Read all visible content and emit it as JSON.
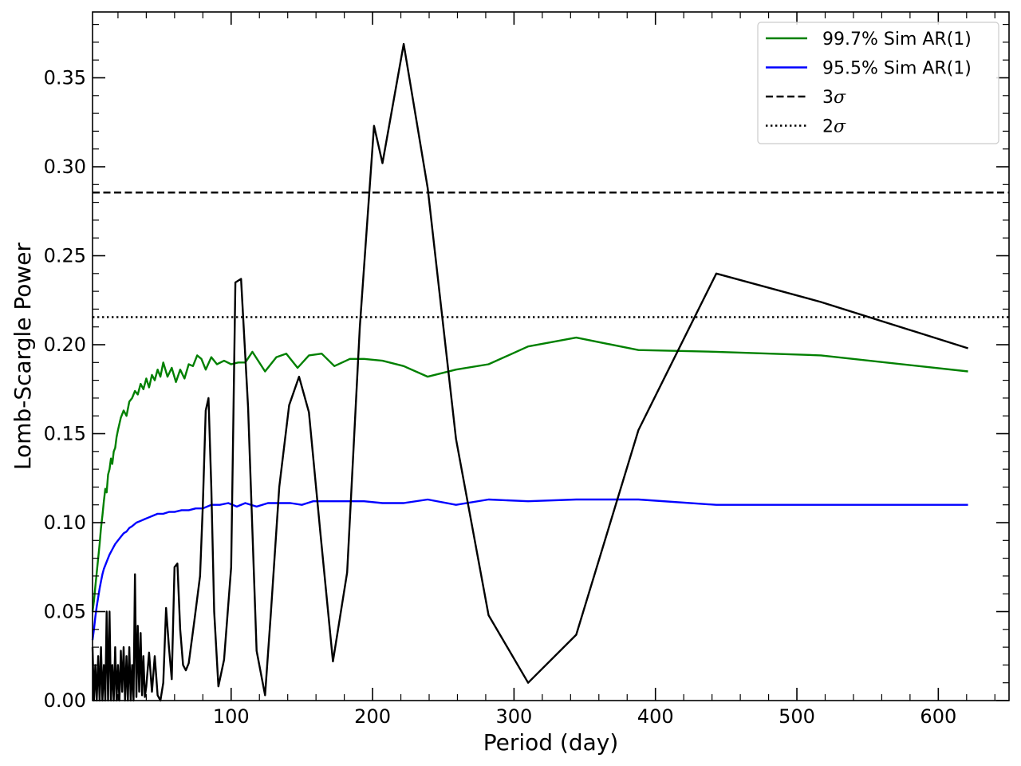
{
  "chart_data": {
    "type": "line",
    "title": "",
    "xlabel": "Period (day)",
    "ylabel": "Lomb-Scargle Power",
    "xlim": [
      2,
      650
    ],
    "ylim": [
      0.0,
      0.387
    ],
    "xticks": [
      100,
      200,
      300,
      400,
      500,
      600
    ],
    "xtick_labels": [
      "100",
      "200",
      "300",
      "400",
      "500",
      "600"
    ],
    "yticks": [
      0.0,
      0.05,
      0.1,
      0.15,
      0.2,
      0.25,
      0.3,
      0.35
    ],
    "ytick_labels": [
      "0.00",
      "0.05",
      "0.10",
      "0.15",
      "0.20",
      "0.25",
      "0.30",
      "0.35"
    ],
    "grid": false,
    "legend_position": "top-right",
    "legend": [
      {
        "label": "99.7% Sim AR(1)",
        "color": "#008000",
        "style": "solid"
      },
      {
        "label": "95.5% Sim AR(1)",
        "color": "#0000ff",
        "style": "solid"
      },
      {
        "label": "3σ",
        "label_main": "3",
        "label_symbol": "σ",
        "color": "#000000",
        "style": "dashed"
      },
      {
        "label": "2σ",
        "label_main": "2",
        "label_symbol": "σ",
        "color": "#000000",
        "style": "dotted"
      }
    ],
    "hlines": [
      {
        "name": "3σ",
        "y": 0.2855,
        "color": "#000000",
        "style": "dashed"
      },
      {
        "name": "2σ",
        "y": 0.2155,
        "color": "#000000",
        "style": "dotted"
      }
    ],
    "series": [
      {
        "name": "99.7% Sim AR(1)",
        "color": "#008000",
        "x": [
          2,
          3,
          4,
          5,
          6,
          7,
          8,
          9,
          10,
          11,
          12,
          13,
          14,
          15,
          16,
          17,
          18,
          19,
          20,
          22,
          24,
          26,
          28,
          30,
          32,
          34,
          36,
          38,
          40,
          42,
          44,
          46,
          48,
          50,
          52,
          55,
          58,
          61,
          64,
          67,
          70,
          73,
          76,
          79,
          82,
          86,
          90,
          95,
          100,
          105,
          110,
          115,
          124,
          132,
          139,
          147,
          155,
          164,
          173,
          184,
          194,
          207,
          222,
          239,
          259,
          282,
          310,
          344,
          388,
          443,
          517,
          621
        ],
        "y": [
          0.05,
          0.056,
          0.064,
          0.072,
          0.08,
          0.088,
          0.097,
          0.104,
          0.112,
          0.119,
          0.117,
          0.127,
          0.13,
          0.136,
          0.133,
          0.14,
          0.142,
          0.148,
          0.152,
          0.159,
          0.163,
          0.16,
          0.168,
          0.17,
          0.174,
          0.172,
          0.178,
          0.175,
          0.181,
          0.176,
          0.183,
          0.18,
          0.186,
          0.182,
          0.19,
          0.182,
          0.187,
          0.179,
          0.186,
          0.181,
          0.189,
          0.188,
          0.194,
          0.192,
          0.186,
          0.193,
          0.189,
          0.191,
          0.189,
          0.19,
          0.19,
          0.196,
          0.185,
          0.193,
          0.195,
          0.187,
          0.194,
          0.195,
          0.188,
          0.192,
          0.192,
          0.191,
          0.188,
          0.182,
          0.186,
          0.189,
          0.199,
          0.204,
          0.197,
          0.196,
          0.194,
          0.185
        ]
      },
      {
        "name": "95.5% Sim AR(1)",
        "color": "#0000ff",
        "x": [
          2,
          3,
          4,
          5,
          6,
          7,
          8,
          9,
          10,
          12,
          14,
          16,
          18,
          20,
          22,
          24,
          26,
          28,
          30,
          33,
          36,
          39,
          42,
          45,
          48,
          52,
          56,
          60,
          65,
          70,
          75,
          80,
          86,
          92,
          98,
          104,
          110,
          118,
          126,
          134,
          142,
          150,
          158,
          170,
          184,
          194,
          207,
          222,
          239,
          259,
          282,
          310,
          344,
          388,
          443,
          517,
          621
        ],
        "y": [
          0.034,
          0.04,
          0.047,
          0.053,
          0.058,
          0.063,
          0.067,
          0.071,
          0.074,
          0.078,
          0.082,
          0.085,
          0.088,
          0.09,
          0.092,
          0.094,
          0.095,
          0.097,
          0.098,
          0.1,
          0.101,
          0.102,
          0.103,
          0.104,
          0.105,
          0.105,
          0.106,
          0.106,
          0.107,
          0.107,
          0.108,
          0.108,
          0.11,
          0.11,
          0.111,
          0.109,
          0.111,
          0.109,
          0.111,
          0.111,
          0.111,
          0.11,
          0.112,
          0.112,
          0.112,
          0.112,
          0.111,
          0.111,
          0.113,
          0.11,
          0.113,
          0.112,
          0.113,
          0.113,
          0.11,
          0.11,
          0.11
        ]
      },
      {
        "name": "",
        "color": "#000000",
        "x": [
          2,
          3,
          4,
          5,
          6,
          7,
          8,
          9,
          10,
          11,
          12,
          13,
          14,
          15,
          16,
          17,
          18,
          19,
          20,
          21,
          22,
          23,
          24,
          25,
          26,
          27,
          28,
          29,
          30,
          31,
          32,
          33,
          34,
          35,
          36,
          37,
          38,
          39,
          40,
          42,
          44,
          46,
          48,
          50,
          52,
          54,
          56,
          58,
          60,
          62,
          64,
          66,
          68,
          70,
          74,
          78,
          80,
          82,
          84,
          86,
          88,
          91,
          95,
          100,
          103,
          107,
          112,
          118,
          124,
          128,
          134,
          141,
          148,
          155,
          163,
          172,
          182,
          191,
          201,
          207,
          222,
          239,
          259,
          282,
          310,
          344,
          388,
          443,
          517,
          621
        ],
        "y": [
          0.03,
          0.0,
          0.02,
          0.0,
          0.025,
          0.0,
          0.03,
          0.0,
          0.02,
          0.0,
          0.05,
          0.0,
          0.05,
          0.0,
          0.02,
          0.0,
          0.03,
          0.0,
          0.02,
          0.0,
          0.028,
          0.005,
          0.03,
          0.0,
          0.025,
          0.0,
          0.03,
          0.0,
          0.02,
          0.0,
          0.071,
          0.002,
          0.042,
          0.005,
          0.038,
          0.003,
          0.025,
          0.002,
          0.008,
          0.027,
          0.005,
          0.025,
          0.003,
          0.0,
          0.01,
          0.052,
          0.03,
          0.012,
          0.075,
          0.077,
          0.04,
          0.02,
          0.017,
          0.021,
          0.045,
          0.07,
          0.11,
          0.163,
          0.17,
          0.12,
          0.05,
          0.008,
          0.023,
          0.075,
          0.235,
          0.237,
          0.165,
          0.028,
          0.003,
          0.048,
          0.12,
          0.166,
          0.182,
          0.162,
          0.095,
          0.022,
          0.072,
          0.21,
          0.323,
          0.302,
          0.369,
          0.288,
          0.147,
          0.048,
          0.01,
          0.037,
          0.152,
          0.24,
          0.224,
          0.198
        ]
      }
    ]
  }
}
